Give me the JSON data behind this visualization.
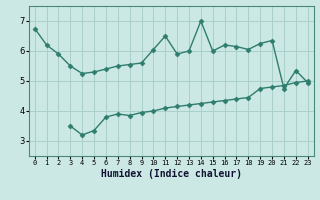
{
  "line1_x": [
    0,
    1,
    2,
    3,
    4,
    5,
    6,
    7,
    8,
    9,
    10,
    11,
    12,
    13,
    14,
    15,
    16,
    17,
    18,
    19,
    20,
    21,
    22,
    23
  ],
  "line1_y": [
    6.75,
    6.2,
    5.9,
    5.5,
    5.25,
    5.3,
    5.4,
    5.5,
    5.55,
    5.6,
    6.05,
    6.5,
    5.9,
    6.0,
    7.0,
    6.0,
    6.2,
    6.15,
    6.05,
    6.25,
    6.35,
    4.75,
    5.35,
    4.95
  ],
  "line2_x": [
    3,
    4,
    5,
    6,
    7,
    8,
    9,
    10,
    11,
    12,
    13,
    14,
    15,
    16,
    17,
    18,
    19,
    20,
    21,
    22,
    23
  ],
  "line2_y": [
    3.5,
    3.2,
    3.35,
    3.8,
    3.9,
    3.85,
    3.95,
    4.0,
    4.1,
    4.15,
    4.2,
    4.25,
    4.3,
    4.35,
    4.4,
    4.45,
    4.75,
    4.8,
    4.85,
    4.95,
    5.0
  ],
  "color": "#2e7d6e",
  "bg_color": "#cce8e4",
  "grid_color": "#aad0cc",
  "xlabel": "Humidex (Indice chaleur)",
  "ylim": [
    2.5,
    7.5
  ],
  "xlim": [
    -0.5,
    23.5
  ],
  "yticks": [
    3,
    4,
    5,
    6,
    7
  ],
  "xticks": [
    0,
    1,
    2,
    3,
    4,
    5,
    6,
    7,
    8,
    9,
    10,
    11,
    12,
    13,
    14,
    15,
    16,
    17,
    18,
    19,
    20,
    21,
    22,
    23
  ],
  "markersize": 2.5,
  "linewidth": 1.0,
  "xlabel_fontsize": 7,
  "tick_fontsize_x": 5,
  "tick_fontsize_y": 6
}
